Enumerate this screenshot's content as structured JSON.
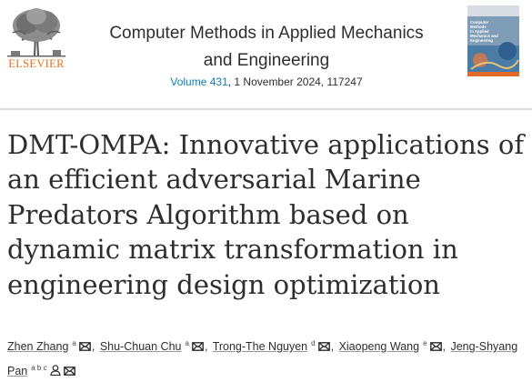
{
  "publisher": {
    "name": "ELSEVIER",
    "logo_icon": "elsevier-tree-icon"
  },
  "journal": {
    "title_line1": "Computer Methods in Applied Mechanics",
    "title_line2": "and Engineering",
    "volume_link": "Volume 431",
    "issue_details": ", 1 November 2024, 117247",
    "link_color": "#0c7dbb",
    "cover_text": "Computer\nMethods\nin Applied\nMechanics and\nEngineering"
  },
  "article": {
    "title": "DMT-OMPA: Innovative applications of an efficient adversarial Marine Predators Algorithm based on dynamic matrix transformation in engineering design optimization"
  },
  "authors": [
    {
      "name": "Zhen Zhang",
      "affiliation": "a"
    },
    {
      "name": "Shu-Chuan Chu",
      "affiliation": "a"
    },
    {
      "name": "Trong-The Nguyen",
      "affiliation": "d"
    },
    {
      "name": "Xiaopeng Wang",
      "affiliation": "e"
    },
    {
      "name": "Jeng-Shyang Pan",
      "affiliation": "a b c"
    }
  ],
  "author_separator": ","
}
